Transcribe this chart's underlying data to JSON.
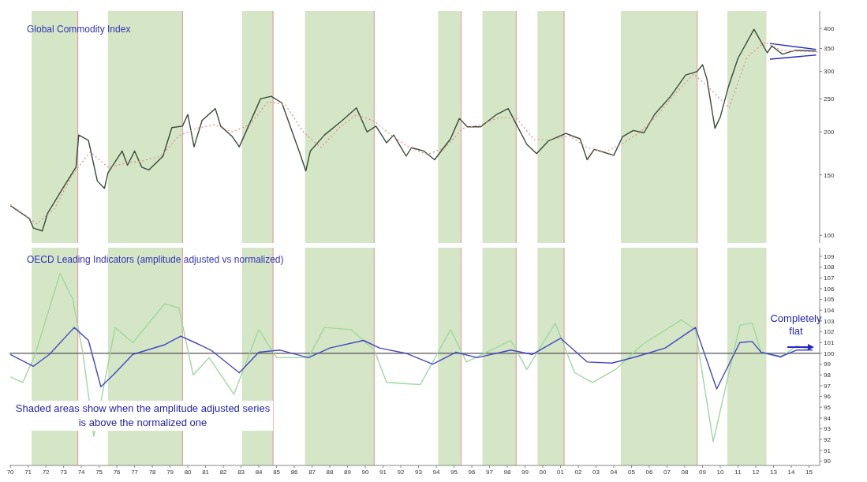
{
  "chart_data": [
    {
      "type": "line",
      "title": "Global Commodity Index",
      "log": true,
      "marker": "none",
      "tick_labels": "y",
      "xlim": [
        1969.95,
        2015.6
      ],
      "ylim": [
        95,
        450
      ],
      "yticks": [
        100,
        150,
        200,
        250,
        300,
        350,
        400
      ],
      "series": [
        {
          "color": "#3a4a3a",
          "x": [
            1970,
            1971.06,
            1971.3,
            1971.8,
            1972.1,
            1973.1,
            1973.7,
            1973.85,
            1974.4,
            1974.9,
            1975.3,
            1975.5,
            1976.3,
            1976.6,
            1977,
            1977.4,
            1977.8,
            1978.6,
            1979.1,
            1979.7,
            1980,
            1980.35,
            1980.8,
            1981.55,
            1981.85,
            1982.5,
            1982.9,
            1984.1,
            1984.7,
            1985.3,
            1986.3,
            1986.65,
            1986.9,
            1987.7,
            1988.7,
            1989.5,
            1990.1,
            1990.6,
            1991.2,
            1991.6,
            1992.3,
            1992.6,
            1993.3,
            1993.9,
            1994.8,
            1995.3,
            1995.75,
            1996.5,
            1997.4,
            1998.05,
            1998.5,
            1999.1,
            1999.65,
            2000.3,
            2001.3,
            2002.1,
            2002.5,
            2002.9,
            2004,
            2004.5,
            2005.1,
            2005.7,
            2006.3,
            2007.2,
            2008.05,
            2008.7,
            2009,
            2009.25,
            2009.7,
            2010,
            2010.45,
            2011,
            2011.9,
            2012.65,
            2012.9,
            2013.5,
            2014.25,
            2015.4
          ],
          "values": [
            122,
            112,
            105,
            103,
            116,
            141,
            158,
            196,
            189,
            144,
            137,
            152,
            176,
            160,
            176,
            158,
            155,
            170,
            206,
            208,
            225,
            181,
            216,
            234,
            208,
            194,
            181,
            250,
            254,
            243,
            174,
            154,
            176,
            196,
            216,
            235,
            200,
            208,
            186,
            196,
            170,
            180,
            176,
            166,
            191,
            219,
            207,
            207,
            225,
            234,
            211,
            184,
            173,
            188,
            198,
            191,
            166,
            178,
            171,
            194,
            202,
            199,
            225,
            254,
            293,
            300,
            314,
            285,
            205,
            221,
            270,
            328,
            398,
            340,
            356,
            337,
            346,
            344
          ]
        },
        {
          "color": "#e08a8a",
          "line_style": "dotted",
          "x": [
            1970,
            1971.5,
            1972.5,
            1973.5,
            1974.5,
            1975.5,
            1976.5,
            1977.5,
            1978.5,
            1979.5,
            1980.5,
            1981.5,
            1982.5,
            1983.5,
            1984.5,
            1985.5,
            1986.5,
            1987.5,
            1988.5,
            1989.5,
            1990.5,
            1991.5,
            1992.5,
            1993.5,
            1994.5,
            1995.5,
            1996.5,
            1997.5,
            1998.5,
            1999.5,
            2000.5,
            2001.5,
            2002.5,
            2003.5,
            2004.5,
            2005.5,
            2006.5,
            2007.5,
            2008.5,
            2009.5,
            2010.5,
            2011.5,
            2012.5,
            2013.5,
            2015.5
          ],
          "values": [
            123,
            108,
            120,
            150,
            175,
            158,
            162,
            165,
            170,
            195,
            205,
            210,
            200,
            210,
            245,
            240,
            200,
            180,
            205,
            225,
            215,
            195,
            180,
            172,
            180,
            205,
            210,
            220,
            220,
            190,
            190,
            195,
            180,
            175,
            185,
            200,
            225,
            260,
            295,
            265,
            235,
            330,
            365,
            345,
            342
          ]
        },
        {
          "color": "#2a2ab8",
          "x": [
            2012.8,
            2015.4
          ],
          "values": [
            362,
            348
          ]
        },
        {
          "color": "#2a2ab8",
          "x": [
            2012.8,
            2015.4
          ],
          "values": [
            326,
            335
          ]
        }
      ],
      "bands": [
        {
          "axis": "x",
          "from": 1971.2,
          "to": 1973.8,
          "color": "#d4e6c6"
        },
        {
          "axis": "x",
          "from": 1975.5,
          "to": 1979.7,
          "color": "#d4e6c6"
        },
        {
          "axis": "x",
          "from": 1983.05,
          "to": 1984.8,
          "color": "#d4e6c6"
        },
        {
          "axis": "x",
          "from": 1986.6,
          "to": 1990.5,
          "color": "#d4e6c6"
        },
        {
          "axis": "x",
          "from": 1994.1,
          "to": 1995.4,
          "color": "#d4e6c6"
        },
        {
          "axis": "x",
          "from": 1996.6,
          "to": 1998.5,
          "color": "#d4e6c6"
        },
        {
          "axis": "x",
          "from": 1999.7,
          "to": 2001.2,
          "color": "#d4e6c6"
        },
        {
          "axis": "x",
          "from": 2004.4,
          "to": 2008.7,
          "color": "#d4e6c6"
        },
        {
          "axis": "x",
          "from": 2010.4,
          "to": 2012.6,
          "color": "#d4e6c6"
        }
      ],
      "ref_lines": [
        {
          "axis": "x",
          "value": 1973.8,
          "color": "#e8a0a0"
        },
        {
          "axis": "x",
          "value": 1979.7,
          "color": "#e8a0a0"
        },
        {
          "axis": "x",
          "value": 1984.8,
          "color": "#e8a0a0"
        },
        {
          "axis": "x",
          "value": 1990.5,
          "color": "#e8a0a0"
        },
        {
          "axis": "x",
          "value": 1995.4,
          "color": "#e8a0a0"
        },
        {
          "axis": "x",
          "value": 1998.5,
          "color": "#e8a0a0"
        },
        {
          "axis": "x",
          "value": 2001.2,
          "color": "#e8a0a0"
        },
        {
          "axis": "x",
          "value": 2008.7,
          "color": "#e8a0a0"
        }
      ]
    },
    {
      "type": "line",
      "title": "OECD Leading Indicators (amplitude adjusted vs normalized)",
      "marker": "none",
      "annotations": [
        "Shaded areas show when the amplitude adjusted series is above the normalized one",
        "Completely flat"
      ],
      "xlim": [
        1969.95,
        2015.6
      ],
      "xticks": [
        {
          "value": 1970,
          "label": "70"
        },
        {
          "value": 1971,
          "label": "71"
        },
        {
          "value": 1972,
          "label": "72"
        },
        {
          "value": 1973,
          "label": "73"
        },
        {
          "value": 1974,
          "label": "74"
        },
        {
          "value": 1975,
          "label": "75"
        },
        {
          "value": 1976,
          "label": "76"
        },
        {
          "value": 1977,
          "label": "77"
        },
        {
          "value": 1978,
          "label": "78"
        },
        {
          "value": 1979,
          "label": "79"
        },
        {
          "value": 1980,
          "label": "80"
        },
        {
          "value": 1981,
          "label": "81"
        },
        {
          "value": 1982,
          "label": "82"
        },
        {
          "value": 1983,
          "label": "83"
        },
        {
          "value": 1984,
          "label": "84"
        },
        {
          "value": 1985,
          "label": "85"
        },
        {
          "value": 1986,
          "label": "86"
        },
        {
          "value": 1987,
          "label": "87"
        },
        {
          "value": 1988,
          "label": "88"
        },
        {
          "value": 1989,
          "label": "89"
        },
        {
          "value": 1990,
          "label": "90"
        },
        {
          "value": 1991,
          "label": "91"
        },
        {
          "value": 1992,
          "label": "92"
        },
        {
          "value": 1993,
          "label": "93"
        },
        {
          "value": 1994,
          "label": "94"
        },
        {
          "value": 1995,
          "label": "95"
        },
        {
          "value": 1996,
          "label": "96"
        },
        {
          "value": 1997,
          "label": "97"
        },
        {
          "value": 1998,
          "label": "98"
        },
        {
          "value": 1999,
          "label": "99"
        },
        {
          "value": 2000,
          "label": "00"
        },
        {
          "value": 2001,
          "label": "01"
        },
        {
          "value": 2002,
          "label": "02"
        },
        {
          "value": 2003,
          "label": "03"
        },
        {
          "value": 2004,
          "label": "04"
        },
        {
          "value": 2005,
          "label": "05"
        },
        {
          "value": 2006,
          "label": "06"
        },
        {
          "value": 2007,
          "label": "07"
        },
        {
          "value": 2008,
          "label": "08"
        },
        {
          "value": 2009,
          "label": "09"
        },
        {
          "value": 2010,
          "label": "10"
        },
        {
          "value": 2011,
          "label": "11"
        },
        {
          "value": 2012,
          "label": "12"
        },
        {
          "value": 2013,
          "label": "13"
        },
        {
          "value": 2014,
          "label": "14"
        },
        {
          "value": 2015,
          "label": "15"
        }
      ],
      "ylim": [
        89.6,
        109.8
      ],
      "yticks": [
        90,
        91,
        92,
        93,
        94,
        95,
        96,
        97,
        98,
        99,
        100,
        101,
        102,
        103,
        104,
        105,
        106,
        107,
        108,
        109
      ],
      "series": [
        {
          "color": "#9fd89f",
          "x": [
            1970,
            1970.7,
            1971.4,
            1972.8,
            1973.5,
            1974.1,
            1974.7,
            1975.1,
            1975.9,
            1976.9,
            1978.7,
            1979.5,
            1980.3,
            1981.2,
            1982.6,
            1984,
            1985,
            1986.8,
            1987.7,
            1989.2,
            1990.5,
            1991.2,
            1993.1,
            1994.8,
            1995.7,
            1998.2,
            1999.1,
            2000.7,
            2001.8,
            2002.8,
            2004.1,
            2005.6,
            2007.8,
            2008.6,
            2009.6,
            2011.1,
            2011.8,
            2012.3,
            2013.4,
            2014.3,
            2015.2
          ],
          "values": [
            97.8,
            97.3,
            99.9,
            107.4,
            105.1,
            99.9,
            92.3,
            95.5,
            102.4,
            101,
            104.6,
            104.2,
            98,
            99.6,
            96.2,
            102.2,
            99.6,
            99.6,
            102.4,
            102.2,
            100.3,
            97.3,
            97.1,
            102.2,
            99.2,
            101.2,
            98.5,
            102.8,
            98.2,
            97.3,
            98.5,
            100.8,
            103.1,
            102.2,
            91.8,
            102.6,
            102.8,
            100.1,
            99.6,
            100.7,
            100.3
          ]
        },
        {
          "color": "#4646c4",
          "x": [
            1970,
            1971.3,
            1972.2,
            1973.6,
            1974.4,
            1975.1,
            1975.8,
            1976.9,
            1978.7,
            1979.6,
            1980.4,
            1981.3,
            1982.9,
            1984,
            1985.2,
            1986.8,
            1988,
            1989.9,
            1990.8,
            1992.3,
            1993.8,
            1995.1,
            1996.3,
            1998.2,
            1999.4,
            2001,
            2002.5,
            2003.9,
            2005.3,
            2006.9,
            2008.6,
            2009.8,
            2011.1,
            2011.8,
            2012.3,
            2013.4,
            2014.3,
            2015.2
          ],
          "values": [
            99.9,
            98.8,
            99.9,
            102.4,
            101.2,
            96.9,
            98,
            99.9,
            100.8,
            101.6,
            101,
            100.3,
            98.2,
            100.1,
            100.3,
            99.6,
            100.5,
            101.2,
            100.5,
            100,
            99,
            100.1,
            99.6,
            100.3,
            99.9,
            101.4,
            99.2,
            99.1,
            99.7,
            100.5,
            102.4,
            96.7,
            101,
            101.1,
            100.1,
            99.7,
            100.3,
            100.3
          ]
        }
      ],
      "bands": [
        {
          "axis": "x",
          "from": 1971.2,
          "to": 1973.8,
          "color": "#d4e6c6"
        },
        {
          "axis": "x",
          "from": 1975.5,
          "to": 1979.7,
          "color": "#d4e6c6"
        },
        {
          "axis": "x",
          "from": 1983.05,
          "to": 1984.8,
          "color": "#d4e6c6"
        },
        {
          "axis": "x",
          "from": 1986.6,
          "to": 1990.5,
          "color": "#d4e6c6"
        },
        {
          "axis": "x",
          "from": 1994.1,
          "to": 1995.4,
          "color": "#d4e6c6"
        },
        {
          "axis": "x",
          "from": 1996.6,
          "to": 1998.5,
          "color": "#d4e6c6"
        },
        {
          "axis": "x",
          "from": 1999.7,
          "to": 2001.2,
          "color": "#d4e6c6"
        },
        {
          "axis": "x",
          "from": 2004.4,
          "to": 2008.7,
          "color": "#d4e6c6"
        },
        {
          "axis": "x",
          "from": 2010.4,
          "to": 2012.6,
          "color": "#d4e6c6"
        }
      ],
      "ref_lines": [
        {
          "axis": "x",
          "value": 1973.8,
          "color": "#e8a0a0"
        },
        {
          "axis": "x",
          "value": 1979.7,
          "color": "#e8a0a0"
        },
        {
          "axis": "x",
          "value": 1984.8,
          "color": "#e8a0a0"
        },
        {
          "axis": "x",
          "value": 1990.5,
          "color": "#e8a0a0"
        },
        {
          "axis": "x",
          "value": 1995.4,
          "color": "#e8a0a0"
        },
        {
          "axis": "x",
          "value": 1998.5,
          "color": "#e8a0a0"
        },
        {
          "axis": "x",
          "value": 2001.2,
          "color": "#e8a0a0"
        },
        {
          "axis": "x",
          "value": 2008.7,
          "color": "#e8a0a0"
        },
        {
          "axis": "y",
          "value": 100,
          "color": "#555555"
        }
      ]
    }
  ]
}
